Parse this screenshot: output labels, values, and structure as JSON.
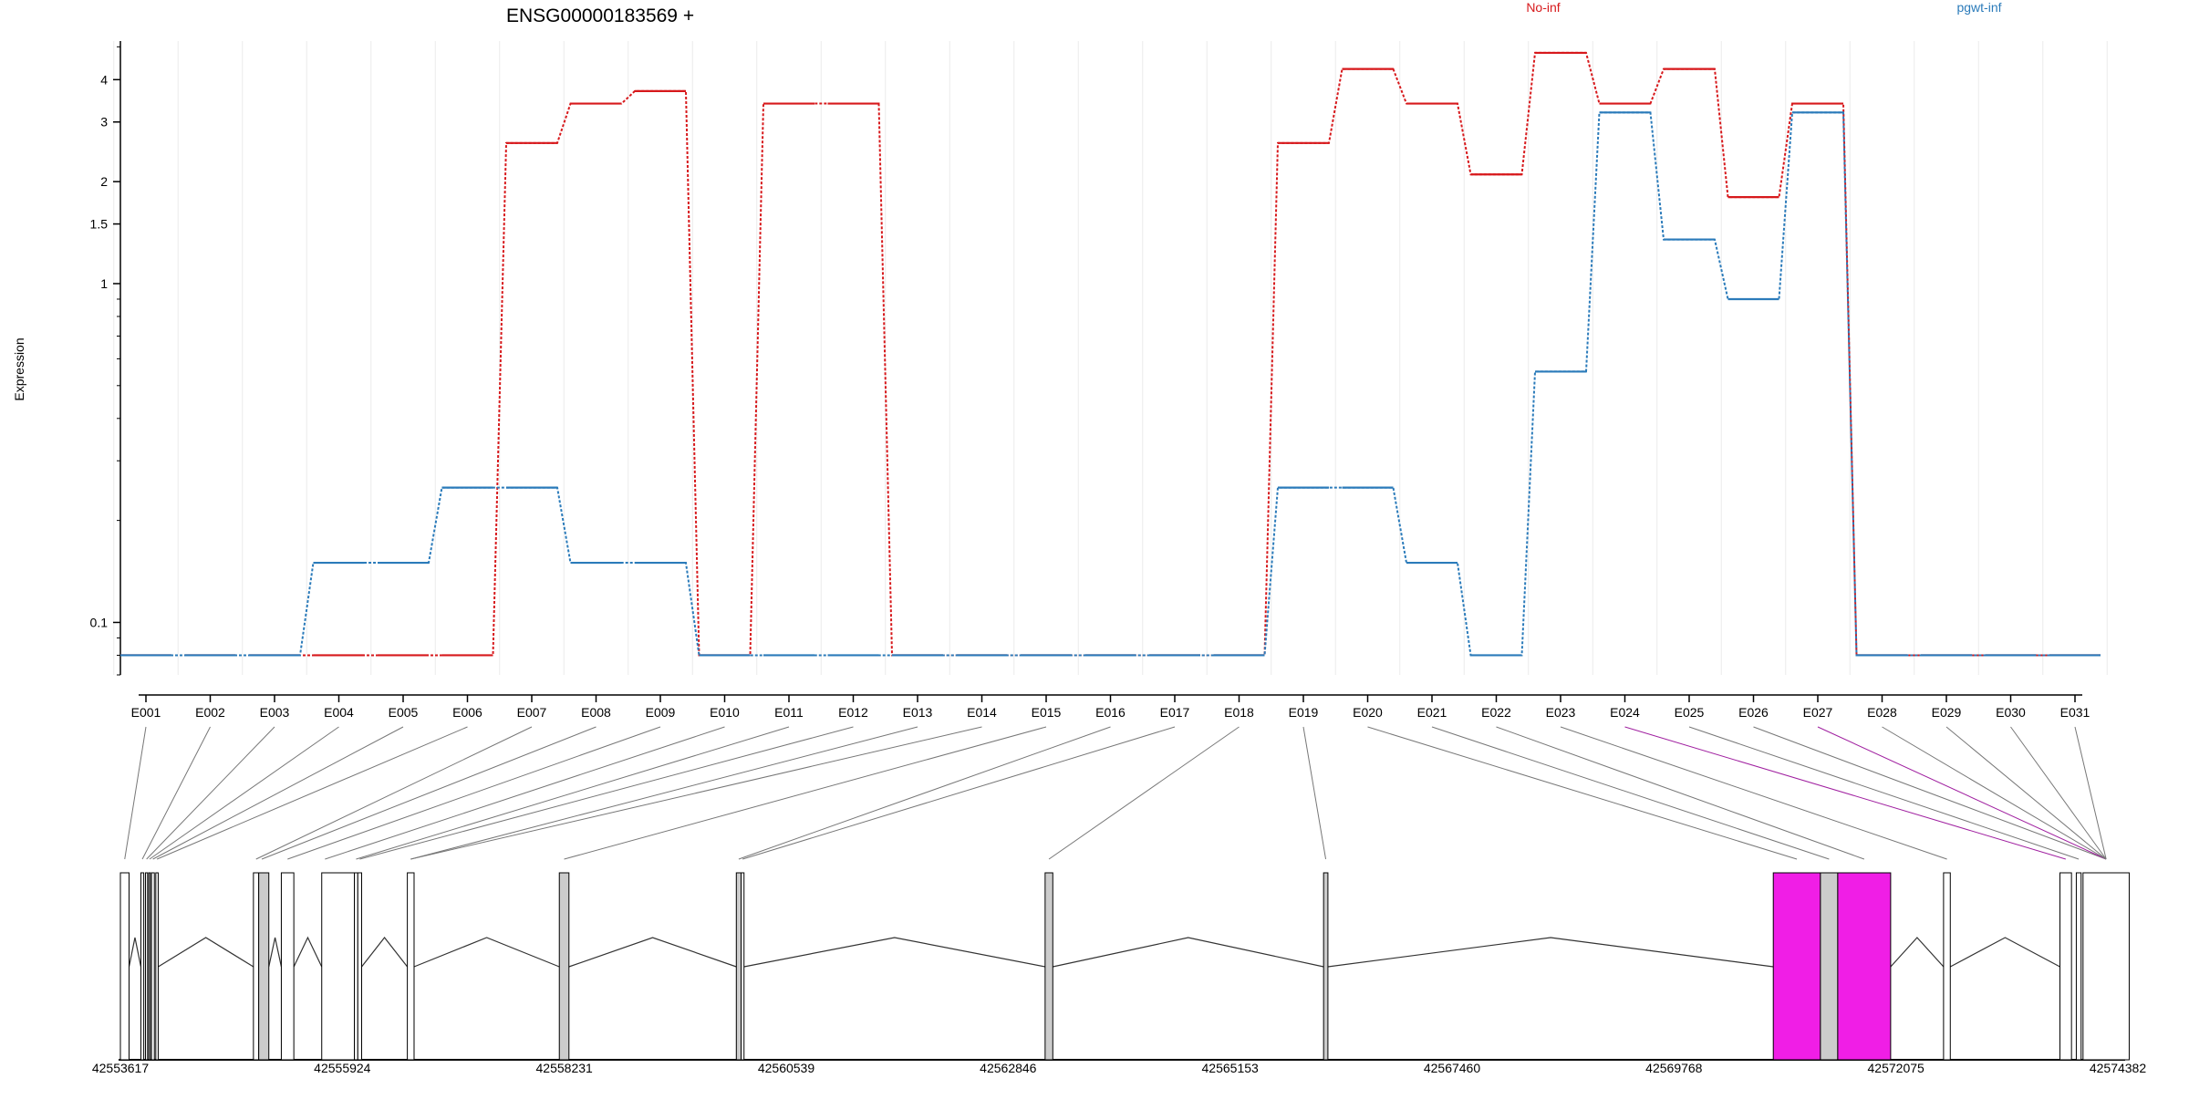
{
  "chart_data": {
    "type": "line",
    "title": "ENSG00000183569 +",
    "ylabel": "Expression",
    "y_scale": "log",
    "y_ticks": [
      {
        "value": 4,
        "label": "4"
      },
      {
        "value": 3,
        "label": "3"
      },
      {
        "value": 2,
        "label": "2"
      },
      {
        "value": 1.5,
        "label": "1.5"
      },
      {
        "value": 1,
        "label": "1"
      },
      {
        "value": 0.1,
        "label": "0.1"
      }
    ],
    "ylim": [
      0.07,
      5.2
    ],
    "grid": "vertical",
    "legend_position": "top",
    "categories": [
      "E001",
      "E002",
      "E003",
      "E004",
      "E005",
      "E006",
      "E007",
      "E008",
      "E009",
      "E010",
      "E011",
      "E012",
      "E013",
      "E014",
      "E015",
      "E016",
      "E017",
      "E018",
      "E019",
      "E020",
      "E021",
      "E022",
      "E023",
      "E024",
      "E025",
      "E026",
      "E027",
      "E028",
      "E029",
      "E030",
      "E031"
    ],
    "series": [
      {
        "name": "No-inf",
        "color": "#d7191c",
        "values": [
          0.08,
          0.08,
          0.08,
          0.08,
          0.08,
          0.08,
          2.6,
          3.4,
          3.7,
          0.08,
          3.4,
          3.4,
          0.08,
          0.08,
          0.08,
          0.08,
          0.08,
          0.08,
          2.6,
          4.3,
          3.4,
          2.1,
          4.8,
          3.4,
          4.3,
          1.8,
          3.4,
          0.08,
          0.08,
          0.08,
          0.08
        ]
      },
      {
        "name": "pgwt-inf",
        "color": "#2b7bba",
        "values": [
          0.08,
          0.08,
          0.08,
          0.15,
          0.15,
          0.25,
          0.25,
          0.15,
          0.15,
          0.08,
          0.08,
          0.08,
          0.08,
          0.08,
          0.08,
          0.08,
          0.08,
          0.08,
          0.25,
          0.25,
          0.15,
          0.08,
          0.55,
          3.2,
          1.35,
          0.9,
          3.2,
          0.08,
          0.08,
          0.08,
          0.08
        ]
      }
    ],
    "gene_model": {
      "coordinate_labels": [
        "42553617",
        "42555924",
        "42558231",
        "42560539",
        "42562846",
        "42565153",
        "42567460",
        "42569768",
        "42572075",
        "42574382"
      ],
      "coord_range": [
        42553617,
        42574382
      ],
      "highlight_color": "#f01ee6",
      "exon_fill": "#cccccc",
      "exons": [
        {
          "id": "E001",
          "start": 42553617,
          "end": 42553707,
          "fill": "white"
        },
        {
          "id": "E002",
          "start": 42553830,
          "end": 42553860,
          "fill": "white"
        },
        {
          "id": "E003",
          "start": 42553878,
          "end": 42553900,
          "fill": "white"
        },
        {
          "id": "E004",
          "start": 42553912,
          "end": 42553928,
          "fill": "white"
        },
        {
          "id": "E005",
          "start": 42553940,
          "end": 42553970,
          "fill": "white"
        },
        {
          "id": "E006",
          "start": 42553985,
          "end": 42554010,
          "fill": "white"
        },
        {
          "id": "E007",
          "start": 42555000,
          "end": 42555055,
          "fill": "white"
        },
        {
          "id": "E008",
          "start": 42555055,
          "end": 42555160,
          "fill": "grey"
        },
        {
          "id": "E009",
          "start": 42555290,
          "end": 42555420,
          "fill": "white"
        },
        {
          "id": "E010",
          "start": 42555710,
          "end": 42556050,
          "fill": "white"
        },
        {
          "id": "E011",
          "start": 42556050,
          "end": 42556085,
          "fill": "white"
        },
        {
          "id": "E012",
          "start": 42556085,
          "end": 42556125,
          "fill": "white"
        },
        {
          "id": "E013",
          "start": 42556600,
          "end": 42556670,
          "fill": "white"
        },
        {
          "id": "E014",
          "start": 42558180,
          "end": 42558280,
          "fill": "grey"
        },
        {
          "id": "E015",
          "start": 42560020,
          "end": 42560070,
          "fill": "grey"
        },
        {
          "id": "E016",
          "start": 42560070,
          "end": 42560100,
          "fill": "white"
        },
        {
          "id": "E017",
          "start": 42563230,
          "end": 42563310,
          "fill": "grey"
        },
        {
          "id": "E018",
          "start": 42566125,
          "end": 42566170,
          "fill": "grey"
        },
        {
          "id": "E019",
          "start": 42570800,
          "end": 42571290,
          "fill": "magenta"
        },
        {
          "id": "E020",
          "start": 42571290,
          "end": 42571470,
          "fill": "grey"
        },
        {
          "id": "E021",
          "start": 42571470,
          "end": 42572020,
          "fill": "magenta"
        },
        {
          "id": "E022",
          "start": 42572570,
          "end": 42572640,
          "fill": "white"
        },
        {
          "id": "E023",
          "start": 42573780,
          "end": 42573900,
          "fill": "white"
        },
        {
          "id": "E024",
          "start": 42573950,
          "end": 42574000,
          "fill": "white"
        },
        {
          "id": "E025",
          "start": 42574020,
          "end": 42574500,
          "fill": "white"
        }
      ],
      "links": [
        {
          "exon": "E001",
          "label": 0,
          "frac": 0.5
        },
        {
          "exon": "E002",
          "label": 1,
          "frac": 0.5
        },
        {
          "exon": "E003",
          "label": 2,
          "frac": 0.5
        },
        {
          "exon": "E004",
          "label": 3,
          "frac": 0.5
        },
        {
          "exon": "E005",
          "label": 4,
          "frac": 0.5
        },
        {
          "exon": "E006",
          "label": 5,
          "frac": 0.5
        },
        {
          "exon": "E007",
          "label": 6,
          "frac": 0.5
        },
        {
          "exon": "E008",
          "label": 7,
          "frac": 0.3
        },
        {
          "exon": "E009",
          "label": 8,
          "frac": 0.5
        },
        {
          "exon": "E010",
          "label": 9,
          "frac": 0.1
        },
        {
          "exon": "E011",
          "label": 10,
          "frac": 0.5
        },
        {
          "exon": "E012",
          "label": 11,
          "frac": 0.5
        },
        {
          "exon": "E013",
          "label": 12,
          "frac": 0.5
        },
        {
          "exon": "E013",
          "label": 13,
          "frac": 0.5
        },
        {
          "exon": "E014",
          "label": 14,
          "frac": 0.5
        },
        {
          "exon": "E015",
          "label": 15,
          "frac": 0.5
        },
        {
          "exon": "E016",
          "label": 16,
          "frac": 0.5
        },
        {
          "exon": "E017",
          "label": 17,
          "frac": 0.5
        },
        {
          "exon": "E018",
          "label": 18,
          "frac": 0.5
        },
        {
          "exon": "E019",
          "label": 19,
          "frac": 0.5
        },
        {
          "exon": "E020",
          "label": 20,
          "frac": 0.5
        },
        {
          "exon": "E021",
          "label": 21,
          "frac": 0.5
        },
        {
          "exon": "E022",
          "label": 22,
          "frac": 0.5
        },
        {
          "exon": "E023",
          "label": 23,
          "frac": 0.5
        },
        {
          "exon": "E024",
          "label": 24,
          "frac": 0.5
        },
        {
          "exon": "E025",
          "label": 25,
          "frac": 0.5
        },
        {
          "exon": "E025",
          "label": 26,
          "frac": 0.5
        },
        {
          "exon": "E025",
          "label": 27,
          "frac": 0.5
        },
        {
          "exon": "E025",
          "label": 28,
          "frac": 0.5
        },
        {
          "exon": "E025",
          "label": 29,
          "frac": 0.5
        },
        {
          "exon": "E025",
          "label": 30,
          "frac": 0.5
        }
      ]
    }
  }
}
